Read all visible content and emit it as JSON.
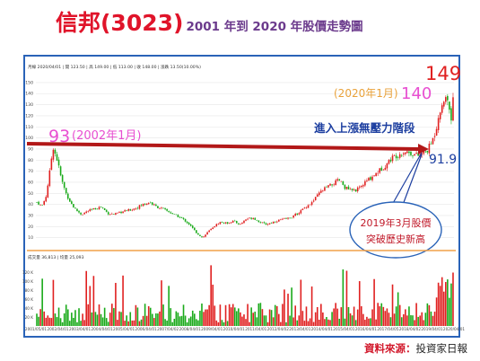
{
  "title": {
    "main": "信邦(3023)",
    "sub": "2001 年到 2020 年股價走勢圖"
  },
  "source": {
    "label": "資料來源：",
    "value": "投資家日報"
  },
  "chart_data": {
    "type": "candlestick",
    "header_text": "月線  2020/04/01 | 開 123.50 | 高 149.00 | 低 113.00 | 收 148.00 | 漲跌 13.50(10.00%)",
    "volume_header_text": "成交量 36,813 | 均量 25,093",
    "y_ticks": [
      10,
      20,
      30,
      40,
      50,
      60,
      70,
      80,
      90,
      100,
      110,
      120,
      130,
      140,
      150
    ],
    "ylim": [
      0,
      155
    ],
    "volume_y_ticks": [
      "20 K",
      "40 K",
      "60 K",
      "80 K",
      "100 K",
      "120 K"
    ],
    "x_tick_labels": [
      "2001/05/01",
      "2002/04/01",
      "2003/04/01",
      "2004/04/01",
      "2005/04/01",
      "2006/04/01",
      "2007/04/02",
      "2008/04/01",
      "2009/04/01",
      "2010/04/01",
      "2011/04/01",
      "2012/04/02",
      "2013/04/01",
      "2014/04/01",
      "2015/04/01",
      "2016/04/01",
      "2017/04/05",
      "2018/04/02",
      "2019/04/01",
      "2020/04/01"
    ],
    "price_path": [
      [
        2001.4,
        42
      ],
      [
        2001.6,
        38
      ],
      [
        2001.8,
        48
      ],
      [
        2002.0,
        75
      ],
      [
        2002.1,
        93
      ],
      [
        2002.3,
        80
      ],
      [
        2002.5,
        62
      ],
      [
        2002.7,
        50
      ],
      [
        2002.9,
        42
      ],
      [
        2003.1,
        36
      ],
      [
        2003.4,
        31
      ],
      [
        2003.7,
        34
      ],
      [
        2004.0,
        36
      ],
      [
        2004.3,
        38
      ],
      [
        2004.6,
        32
      ],
      [
        2004.9,
        31
      ],
      [
        2005.2,
        33
      ],
      [
        2005.6,
        35
      ],
      [
        2005.9,
        37
      ],
      [
        2006.2,
        40
      ],
      [
        2006.5,
        42
      ],
      [
        2006.8,
        38
      ],
      [
        2007.1,
        36
      ],
      [
        2007.4,
        33
      ],
      [
        2007.7,
        30
      ],
      [
        2008.0,
        27
      ],
      [
        2008.3,
        22
      ],
      [
        2008.6,
        15
      ],
      [
        2008.9,
        10
      ],
      [
        2009.1,
        14
      ],
      [
        2009.4,
        20
      ],
      [
        2009.7,
        24
      ],
      [
        2010.0,
        23
      ],
      [
        2010.3,
        25
      ],
      [
        2010.6,
        22
      ],
      [
        2010.9,
        27
      ],
      [
        2011.2,
        28
      ],
      [
        2011.5,
        24
      ],
      [
        2011.8,
        22
      ],
      [
        2012.1,
        24
      ],
      [
        2012.4,
        26
      ],
      [
        2012.7,
        27
      ],
      [
        2013.0,
        29
      ],
      [
        2013.3,
        33
      ],
      [
        2013.6,
        38
      ],
      [
        2013.9,
        42
      ],
      [
        2014.2,
        50
      ],
      [
        2014.5,
        55
      ],
      [
        2014.8,
        58
      ],
      [
        2015.1,
        62
      ],
      [
        2015.4,
        55
      ],
      [
        2015.7,
        52
      ],
      [
        2016.0,
        54
      ],
      [
        2016.3,
        60
      ],
      [
        2016.6,
        65
      ],
      [
        2016.9,
        70
      ],
      [
        2017.2,
        75
      ],
      [
        2017.5,
        82
      ],
      [
        2017.8,
        85
      ],
      [
        2018.1,
        88
      ],
      [
        2018.4,
        86
      ],
      [
        2018.7,
        84
      ],
      [
        2018.9,
        86
      ],
      [
        2019.1,
        88
      ],
      [
        2019.2,
        91.9
      ],
      [
        2019.4,
        100
      ],
      [
        2019.6,
        115
      ],
      [
        2019.8,
        128
      ],
      [
        2020.0,
        140
      ],
      [
        2020.1,
        130
      ],
      [
        2020.2,
        118
      ],
      [
        2020.3,
        135
      ],
      [
        2020.35,
        149
      ]
    ],
    "resistance_level": 90,
    "annotations": {
      "label_93_value": "93",
      "label_93_date": "(2002年1月)",
      "label_140_date": "(2020年1月)",
      "label_140_value": "140",
      "label_149": "149",
      "label_919": "91.9",
      "resistance_text": "進入上漲無壓力階段",
      "callout_line1": "2019年3月股價",
      "callout_line2": "突破歷史新高"
    },
    "colors": {
      "up": "#e02020",
      "down": "#1aaa1a",
      "resistance": "#b21818",
      "callout_border": "#2a63b8",
      "frame": "#2a63b8"
    }
  }
}
